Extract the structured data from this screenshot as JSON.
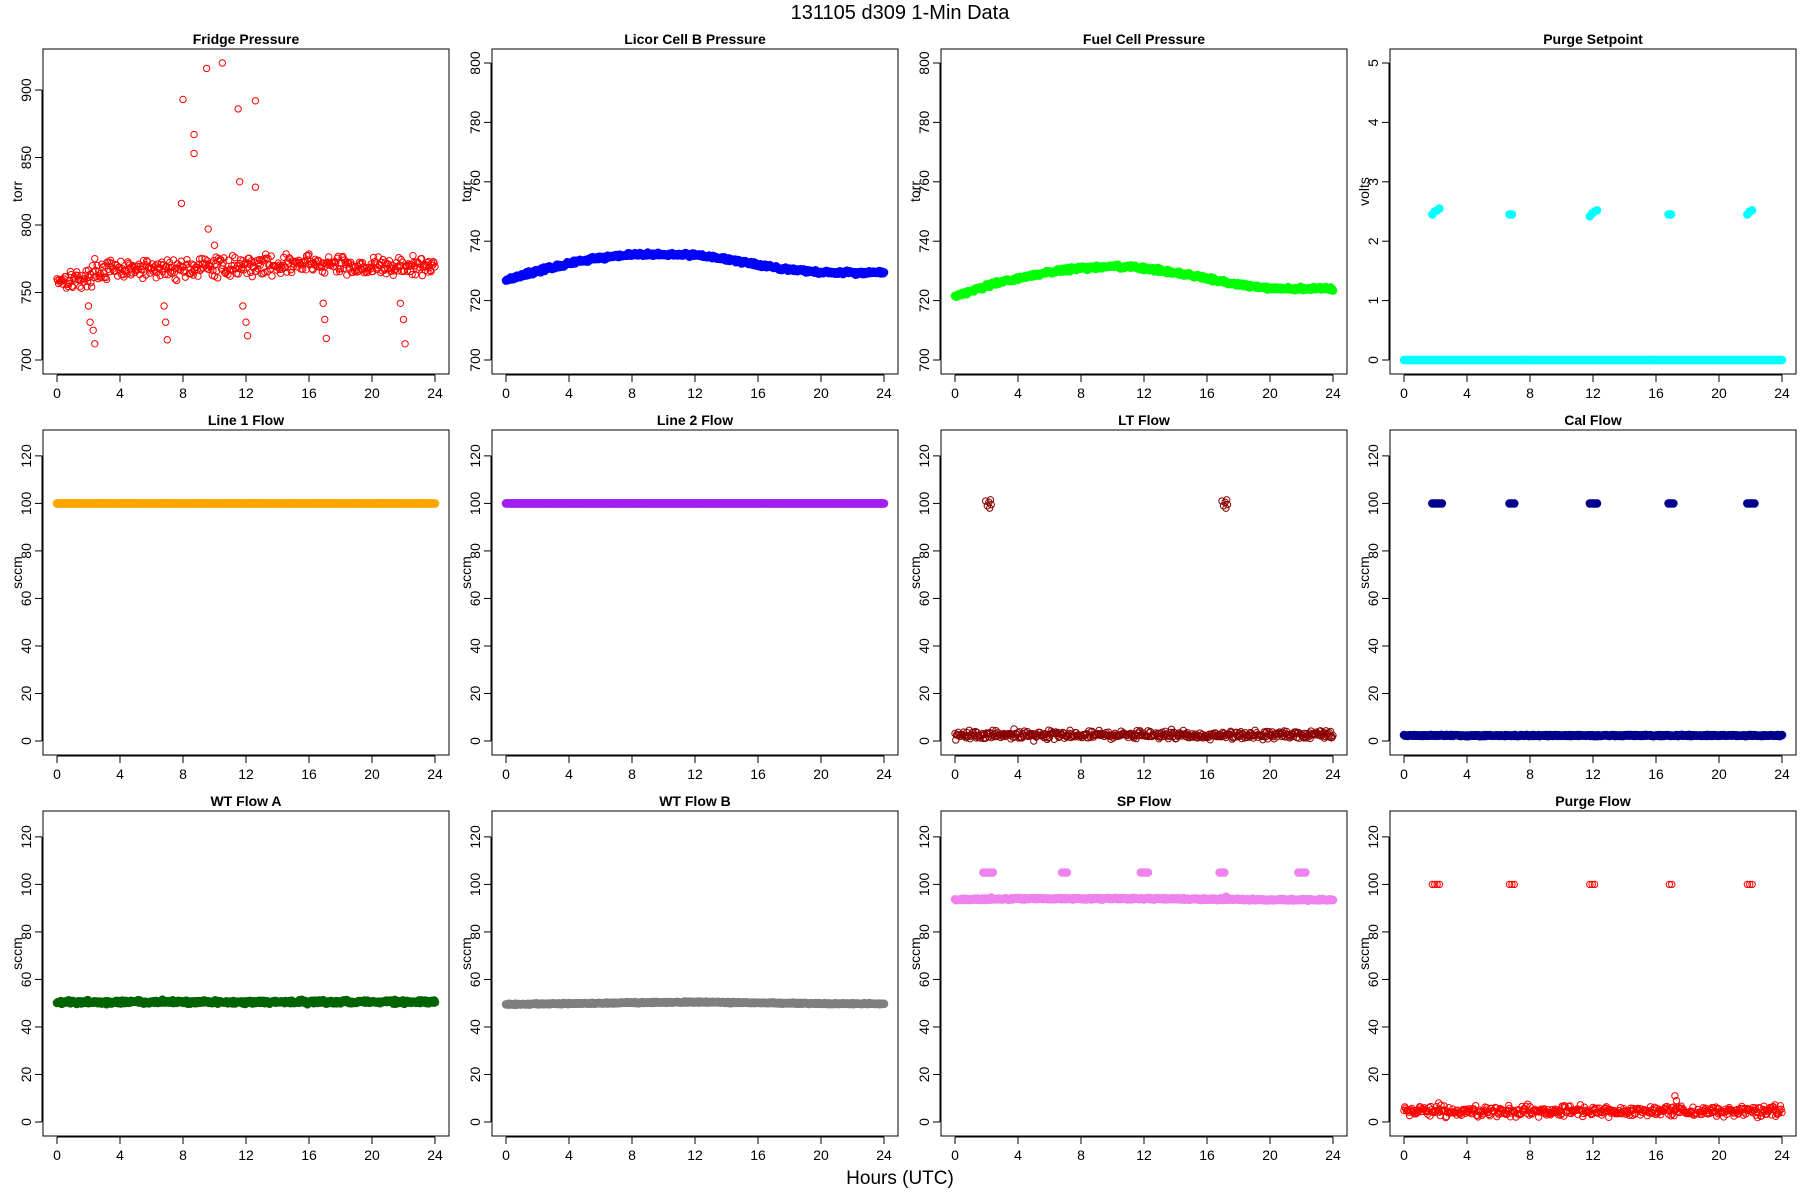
{
  "figure": {
    "title": "131105   d309   1-Min Data",
    "xlabel": "Hours (UTC)"
  },
  "chart_data": [
    {
      "type": "scatter",
      "title": "Fridge Pressure",
      "ylabel": "torr",
      "color": "#ff0000",
      "marker": "open",
      "xlim": [
        0,
        24
      ],
      "ylim": [
        700,
        920
      ],
      "xticks": [
        0,
        4,
        8,
        12,
        16,
        20,
        24
      ],
      "yticks": [
        700,
        750,
        800,
        850,
        900
      ],
      "series": [
        {
          "baseline": [
            [
              0,
              760
            ],
            [
              2,
              760
            ],
            [
              2.3,
              766
            ],
            [
              8,
              768
            ],
            [
              12,
              770
            ],
            [
              16,
              771
            ],
            [
              20,
              769
            ],
            [
              24,
              769
            ]
          ],
          "noise": 6
        }
      ],
      "points": [
        [
          2.0,
          740
        ],
        [
          2.1,
          728
        ],
        [
          2.3,
          722
        ],
        [
          2.4,
          712
        ],
        [
          6.8,
          740
        ],
        [
          6.9,
          728
        ],
        [
          7.0,
          715
        ],
        [
          8.0,
          893
        ],
        [
          7.9,
          816
        ],
        [
          8.7,
          867
        ],
        [
          8.7,
          853
        ],
        [
          9.5,
          916
        ],
        [
          9.6,
          797
        ],
        [
          10.0,
          785
        ],
        [
          10.5,
          920
        ],
        [
          11.5,
          886
        ],
        [
          11.6,
          832
        ],
        [
          12.6,
          892
        ],
        [
          12.6,
          828
        ],
        [
          11.8,
          740
        ],
        [
          12.0,
          728
        ],
        [
          12.1,
          718
        ],
        [
          16.9,
          742
        ],
        [
          17.0,
          730
        ],
        [
          17.1,
          716
        ],
        [
          21.8,
          742
        ],
        [
          22.0,
          730
        ],
        [
          22.1,
          712
        ]
      ]
    },
    {
      "type": "scatter",
      "title": "Licor Cell B Pressure",
      "ylabel": "torr",
      "color": "#0000ff",
      "marker": "filled",
      "xlim": [
        0,
        24
      ],
      "ylim": [
        700,
        800
      ],
      "xticks": [
        0,
        4,
        8,
        12,
        16,
        20,
        24
      ],
      "yticks": [
        700,
        720,
        740,
        760,
        780,
        800
      ],
      "series": [
        {
          "baseline": [
            [
              0,
              727
            ],
            [
              2,
              730
            ],
            [
              4,
              732.5
            ],
            [
              6,
              734.5
            ],
            [
              8,
              735.5
            ],
            [
              10,
              735.5
            ],
            [
              12,
              735.5
            ],
            [
              14,
              734
            ],
            [
              16,
              732
            ],
            [
              18,
              730.5
            ],
            [
              20,
              729.5
            ],
            [
              22,
              729.5
            ],
            [
              24,
              729.5
            ]
          ],
          "noise": 0.5
        }
      ]
    },
    {
      "type": "scatter",
      "title": "Fuel Cell Pressure",
      "ylabel": "torr",
      "color": "#00ff00",
      "marker": "filled",
      "xlim": [
        0,
        24
      ],
      "ylim": [
        700,
        800
      ],
      "xticks": [
        0,
        4,
        8,
        12,
        16,
        20,
        24
      ],
      "yticks": [
        700,
        720,
        740,
        760,
        780,
        800
      ],
      "series": [
        {
          "baseline": [
            [
              0,
              721.5
            ],
            [
              2,
              725
            ],
            [
              4,
              727.5
            ],
            [
              6,
              729.5
            ],
            [
              8,
              731
            ],
            [
              10,
              731.5
            ],
            [
              12,
              731
            ],
            [
              14,
              729.5
            ],
            [
              16,
              727.5
            ],
            [
              18,
              725.5
            ],
            [
              20,
              724
            ],
            [
              22,
              724
            ],
            [
              24,
              724
            ]
          ],
          "noise": 0.5
        }
      ]
    },
    {
      "type": "scatter",
      "title": "Purge Setpoint",
      "ylabel": "volts",
      "color": "#00ffff",
      "marker": "filled",
      "xlim": [
        0,
        24
      ],
      "ylim": [
        0,
        5
      ],
      "xticks": [
        0,
        4,
        8,
        12,
        16,
        20,
        24
      ],
      "yticks": [
        0,
        1,
        2,
        3,
        4,
        5
      ],
      "series": [
        {
          "baseline": [
            [
              0,
              0
            ],
            [
              24,
              0
            ]
          ],
          "noise": 0
        }
      ],
      "points": [
        [
          1.8,
          2.45
        ],
        [
          1.95,
          2.5
        ],
        [
          2.1,
          2.52
        ],
        [
          2.25,
          2.55
        ],
        [
          6.7,
          2.45
        ],
        [
          6.85,
          2.45
        ],
        [
          11.8,
          2.42
        ],
        [
          11.95,
          2.47
        ],
        [
          12.1,
          2.5
        ],
        [
          12.25,
          2.52
        ],
        [
          16.8,
          2.45
        ],
        [
          16.95,
          2.45
        ],
        [
          21.8,
          2.45
        ],
        [
          21.95,
          2.5
        ],
        [
          22.1,
          2.52
        ]
      ]
    },
    {
      "type": "scatter",
      "title": "Line 1 Flow",
      "ylabel": "sccm",
      "color": "#ffa500",
      "marker": "filled",
      "xlim": [
        0,
        24
      ],
      "ylim": [
        0,
        125
      ],
      "xticks": [
        0,
        4,
        8,
        12,
        16,
        20,
        24
      ],
      "yticks": [
        0,
        20,
        40,
        60,
        80,
        100,
        120
      ],
      "series": [
        {
          "baseline": [
            [
              0,
              100
            ],
            [
              24,
              100
            ]
          ],
          "noise": 0
        }
      ]
    },
    {
      "type": "scatter",
      "title": "Line 2 Flow",
      "ylabel": "sccm",
      "color": "#a020f0",
      "marker": "filled",
      "xlim": [
        0,
        24
      ],
      "ylim": [
        0,
        125
      ],
      "xticks": [
        0,
        4,
        8,
        12,
        16,
        20,
        24
      ],
      "yticks": [
        0,
        20,
        40,
        60,
        80,
        100,
        120
      ],
      "series": [
        {
          "baseline": [
            [
              0,
              100
            ],
            [
              24,
              100
            ]
          ],
          "noise": 0
        }
      ]
    },
    {
      "type": "scatter",
      "title": "LT Flow",
      "ylabel": "sccm",
      "color": "#8b0000",
      "marker": "open",
      "xlim": [
        0,
        24
      ],
      "ylim": [
        0,
        125
      ],
      "xticks": [
        0,
        4,
        8,
        12,
        16,
        20,
        24
      ],
      "yticks": [
        0,
        20,
        40,
        60,
        80,
        100,
        120
      ],
      "series": [
        {
          "baseline": [
            [
              0,
              2.5
            ],
            [
              24,
              2.5
            ]
          ],
          "noise": 1.5
        }
      ],
      "points": [
        [
          1.95,
          101
        ],
        [
          2.05,
          99
        ],
        [
          2.15,
          100.5
        ],
        [
          2.2,
          98
        ],
        [
          2.25,
          101.5
        ],
        [
          2.3,
          99.5
        ],
        [
          16.95,
          101
        ],
        [
          17.05,
          99
        ],
        [
          17.15,
          100.5
        ],
        [
          17.2,
          98
        ],
        [
          17.25,
          101.5
        ],
        [
          17.3,
          99.5
        ]
      ]
    },
    {
      "type": "scatter",
      "title": "Cal Flow",
      "ylabel": "sccm",
      "color": "#00008b",
      "marker": "filled",
      "xlim": [
        0,
        24
      ],
      "ylim": [
        0,
        125
      ],
      "xticks": [
        0,
        4,
        8,
        12,
        16,
        20,
        24
      ],
      "yticks": [
        0,
        20,
        40,
        60,
        80,
        100,
        120
      ],
      "series": [
        {
          "baseline": [
            [
              0,
              2.3
            ],
            [
              24,
              2.3
            ]
          ],
          "noise": 0.2
        }
      ],
      "points": [
        [
          1.8,
          100
        ],
        [
          1.95,
          100
        ],
        [
          2.1,
          100
        ],
        [
          2.25,
          100
        ],
        [
          2.4,
          100
        ],
        [
          6.7,
          100
        ],
        [
          6.85,
          100
        ],
        [
          7.0,
          100
        ],
        [
          11.8,
          100
        ],
        [
          11.95,
          100
        ],
        [
          12.1,
          100
        ],
        [
          12.25,
          100
        ],
        [
          16.8,
          100
        ],
        [
          16.95,
          100
        ],
        [
          17.1,
          100
        ],
        [
          21.8,
          100
        ],
        [
          21.95,
          100
        ],
        [
          22.1,
          100
        ],
        [
          22.25,
          100
        ]
      ]
    },
    {
      "type": "scatter",
      "title": "WT Flow A",
      "ylabel": "sccm",
      "color": "#006400",
      "marker": "filled",
      "xlim": [
        0,
        24
      ],
      "ylim": [
        0,
        125
      ],
      "xticks": [
        0,
        4,
        8,
        12,
        16,
        20,
        24
      ],
      "yticks": [
        0,
        20,
        40,
        60,
        80,
        100,
        120
      ],
      "series": [
        {
          "baseline": [
            [
              0,
              50.5
            ],
            [
              24,
              50.5
            ]
          ],
          "noise": 0.6
        }
      ]
    },
    {
      "type": "scatter",
      "title": "WT Flow B",
      "ylabel": "sccm",
      "color": "#7f7f7f",
      "marker": "filled",
      "xlim": [
        0,
        24
      ],
      "ylim": [
        0,
        125
      ],
      "xticks": [
        0,
        4,
        8,
        12,
        16,
        20,
        24
      ],
      "yticks": [
        0,
        20,
        40,
        60,
        80,
        100,
        120
      ],
      "series": [
        {
          "baseline": [
            [
              0,
              49.5
            ],
            [
              8,
              50.2
            ],
            [
              12,
              50.5
            ],
            [
              16,
              50.2
            ],
            [
              20,
              49.8
            ],
            [
              24,
              49.8
            ]
          ],
          "noise": 0.2
        }
      ]
    },
    {
      "type": "scatter",
      "title": "SP Flow",
      "ylabel": "sccm",
      "color": "#ee82ee",
      "marker": "filled",
      "xlim": [
        0,
        24
      ],
      "ylim": [
        0,
        125
      ],
      "xticks": [
        0,
        4,
        8,
        12,
        16,
        20,
        24
      ],
      "yticks": [
        0,
        20,
        40,
        60,
        80,
        100,
        120
      ],
      "series": [
        {
          "baseline": [
            [
              0,
              93.5
            ],
            [
              4,
              94
            ],
            [
              8,
              94
            ],
            [
              12,
              94
            ],
            [
              16,
              93.8
            ],
            [
              20,
              93.5
            ],
            [
              24,
              93.5
            ]
          ],
          "noise": 0.3
        }
      ],
      "points": [
        [
          1.8,
          105
        ],
        [
          1.95,
          105
        ],
        [
          2.1,
          105
        ],
        [
          2.25,
          105
        ],
        [
          2.4,
          105
        ],
        [
          6.8,
          105
        ],
        [
          6.95,
          105
        ],
        [
          7.1,
          105
        ],
        [
          11.8,
          105
        ],
        [
          11.95,
          105
        ],
        [
          12.1,
          105
        ],
        [
          12.25,
          105
        ],
        [
          16.8,
          105
        ],
        [
          16.95,
          105
        ],
        [
          17.1,
          105
        ],
        [
          21.8,
          105
        ],
        [
          21.95,
          105
        ],
        [
          22.1,
          105
        ],
        [
          22.25,
          105
        ],
        [
          2.3,
          94.5
        ],
        [
          17.2,
          94.8
        ]
      ]
    },
    {
      "type": "scatter",
      "title": "Purge Flow",
      "ylabel": "sccm",
      "color": "#ff0000",
      "marker": "open",
      "xlim": [
        0,
        24
      ],
      "ylim": [
        0,
        125
      ],
      "xticks": [
        0,
        4,
        8,
        12,
        16,
        20,
        24
      ],
      "yticks": [
        0,
        20,
        40,
        60,
        80,
        100,
        120
      ],
      "series": [
        {
          "baseline": [
            [
              0,
              4.5
            ],
            [
              24,
              4.5
            ]
          ],
          "noise": 1.8
        }
      ],
      "points": [
        [
          1.8,
          100
        ],
        [
          1.95,
          100
        ],
        [
          2.1,
          100
        ],
        [
          2.25,
          100
        ],
        [
          6.7,
          100
        ],
        [
          6.85,
          100
        ],
        [
          7.0,
          100
        ],
        [
          11.8,
          100
        ],
        [
          11.95,
          100
        ],
        [
          12.1,
          100
        ],
        [
          16.85,
          100
        ],
        [
          17.0,
          100
        ],
        [
          21.8,
          100
        ],
        [
          21.95,
          100
        ],
        [
          22.1,
          100
        ],
        [
          2.2,
          8
        ],
        [
          17.2,
          11
        ],
        [
          17.3,
          9
        ]
      ]
    }
  ]
}
